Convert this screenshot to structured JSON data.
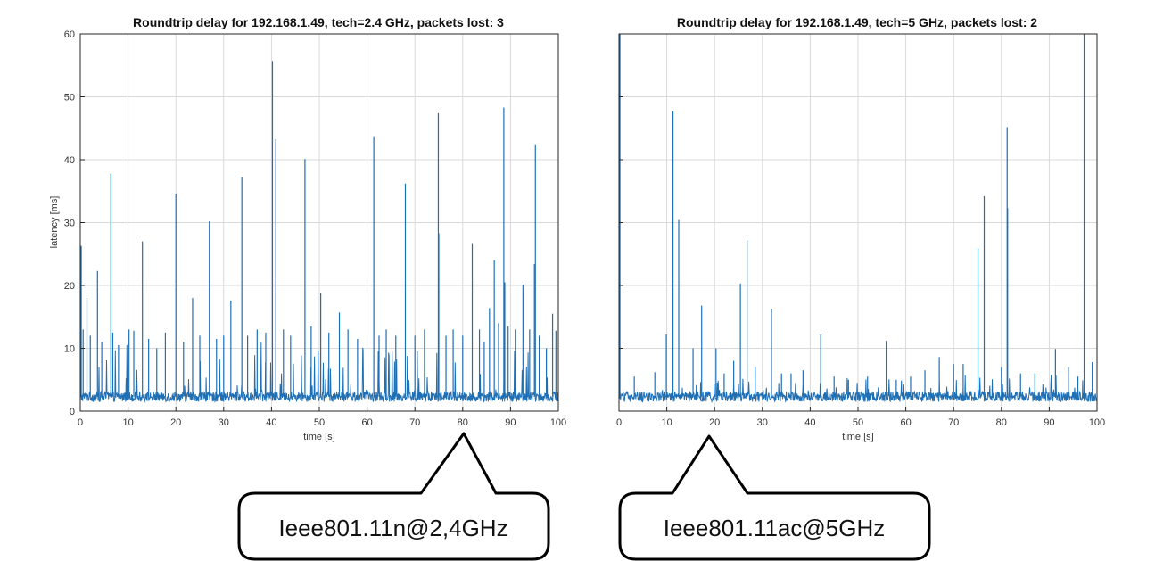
{
  "chart_data": [
    {
      "type": "line",
      "title": "Roundtrip delay for 192.168.1.49, tech=2.4 GHz, packets lost: 3",
      "xlabel": "time [s]",
      "ylabel": "latency [ms]",
      "xlim": [
        0,
        100
      ],
      "ylim": [
        0,
        60
      ],
      "xticks": [
        0,
        10,
        20,
        30,
        40,
        50,
        60,
        70,
        80,
        90,
        100
      ],
      "yticks": [
        0,
        10,
        20,
        30,
        40,
        50,
        60
      ],
      "show_y_tick_labels": true,
      "grid": true,
      "color": "#1f6fb4",
      "series": [
        {
          "name": "roundtrip delay",
          "baseline": 2.3,
          "spikes": [
            [
              0.2,
              26.3
            ],
            [
              0.6,
              13.0
            ],
            [
              1.4,
              18.0
            ],
            [
              2.1,
              12.0
            ],
            [
              3.6,
              22.3
            ],
            [
              4.5,
              11.0
            ],
            [
              6.4,
              37.8
            ],
            [
              6.8,
              12.5
            ],
            [
              8.0,
              10.5
            ],
            [
              10.2,
              13.0
            ],
            [
              11.2,
              12.8
            ],
            [
              13.0,
              27.0
            ],
            [
              14.3,
              11.5
            ],
            [
              16.0,
              10.0
            ],
            [
              17.8,
              12.5
            ],
            [
              20.0,
              34.6
            ],
            [
              21.6,
              11.0
            ],
            [
              23.5,
              18.0
            ],
            [
              25.0,
              12.0
            ],
            [
              27.0,
              30.2
            ],
            [
              28.5,
              11.5
            ],
            [
              30.0,
              12.0
            ],
            [
              31.5,
              17.6
            ],
            [
              33.8,
              37.2
            ],
            [
              35.0,
              12.0
            ],
            [
              37.0,
              13.0
            ],
            [
              38.8,
              12.5
            ],
            [
              40.2,
              55.7
            ],
            [
              40.9,
              43.3
            ],
            [
              42.5,
              13.0
            ],
            [
              44.0,
              12.0
            ],
            [
              47.0,
              40.1
            ],
            [
              48.3,
              13.5
            ],
            [
              50.3,
              18.8
            ],
            [
              52.0,
              12.5
            ],
            [
              54.2,
              15.7
            ],
            [
              56.0,
              13.0
            ],
            [
              58.0,
              11.5
            ],
            [
              61.4,
              43.6
            ],
            [
              62.5,
              12.0
            ],
            [
              64.0,
              13.0
            ],
            [
              66.0,
              12.0
            ],
            [
              68.0,
              36.2
            ],
            [
              70.0,
              12.0
            ],
            [
              72.0,
              13.0
            ],
            [
              74.9,
              47.4
            ],
            [
              75.0,
              28.3
            ],
            [
              76.5,
              12.0
            ],
            [
              78.0,
              13.0
            ],
            [
              80.0,
              12.0
            ],
            [
              82.0,
              26.6
            ],
            [
              83.5,
              13.0
            ],
            [
              84.5,
              11.0
            ],
            [
              85.6,
              16.4
            ],
            [
              86.6,
              24.0
            ],
            [
              87.5,
              14.0
            ],
            [
              88.6,
              48.3
            ],
            [
              88.8,
              20.5
            ],
            [
              89.5,
              13.5
            ],
            [
              91.0,
              13.0
            ],
            [
              92.6,
              20.1
            ],
            [
              94.0,
              13.0
            ],
            [
              95.2,
              42.3
            ],
            [
              95.0,
              23.4
            ],
            [
              96.0,
              12.0
            ],
            [
              97.5,
              10.0
            ],
            [
              98.8,
              15.5
            ],
            [
              99.5,
              12.8
            ]
          ]
        }
      ]
    },
    {
      "type": "line",
      "title": "Roundtrip delay for 192.168.1.49, tech=5 GHz, packets lost: 2",
      "xlabel": "time [s]",
      "ylabel": "",
      "xlim": [
        0,
        100
      ],
      "ylim": [
        0,
        60
      ],
      "xticks": [
        0,
        10,
        20,
        30,
        40,
        50,
        60,
        70,
        80,
        90,
        100
      ],
      "yticks": [
        0,
        10,
        20,
        30,
        40,
        50,
        60
      ],
      "show_y_tick_labels": false,
      "grid": true,
      "color": "#1f6fb4",
      "series": [
        {
          "name": "roundtrip delay",
          "baseline": 2.3,
          "spikes": [
            [
              0.2,
              60.0
            ],
            [
              3.2,
              5.5
            ],
            [
              7.5,
              6.2
            ],
            [
              9.9,
              12.2
            ],
            [
              11.3,
              47.7
            ],
            [
              12.5,
              30.4
            ],
            [
              15.5,
              10.0
            ],
            [
              17.3,
              16.8
            ],
            [
              20.3,
              10.0
            ],
            [
              22.0,
              6.0
            ],
            [
              24.0,
              8.0
            ],
            [
              25.4,
              20.3
            ],
            [
              26.8,
              27.2
            ],
            [
              28.5,
              7.0
            ],
            [
              31.9,
              16.3
            ],
            [
              34.0,
              6.0
            ],
            [
              36.0,
              6.0
            ],
            [
              38.5,
              6.5
            ],
            [
              42.2,
              12.2
            ],
            [
              45.0,
              5.5
            ],
            [
              48.0,
              5.0
            ],
            [
              52.0,
              5.5
            ],
            [
              55.9,
              11.2
            ],
            [
              58.0,
              5.0
            ],
            [
              61.0,
              5.5
            ],
            [
              64.0,
              6.5
            ],
            [
              67.0,
              8.6
            ],
            [
              70.0,
              7.5
            ],
            [
              72.0,
              7.5
            ],
            [
              75.1,
              25.9
            ],
            [
              76.4,
              34.2
            ],
            [
              80.0,
              7.0
            ],
            [
              81.2,
              45.2
            ],
            [
              81.3,
              32.3
            ],
            [
              84.0,
              6.0
            ],
            [
              87.0,
              6.0
            ],
            [
              91.3,
              9.9
            ],
            [
              94.0,
              7.0
            ],
            [
              96.0,
              5.5
            ],
            [
              97.3,
              60.0
            ],
            [
              99.0,
              7.8
            ]
          ]
        }
      ]
    }
  ],
  "callouts": [
    {
      "label": "Ieee801.11n@2,4GHz"
    },
    {
      "label": "Ieee801.11ac@5GHz"
    }
  ]
}
